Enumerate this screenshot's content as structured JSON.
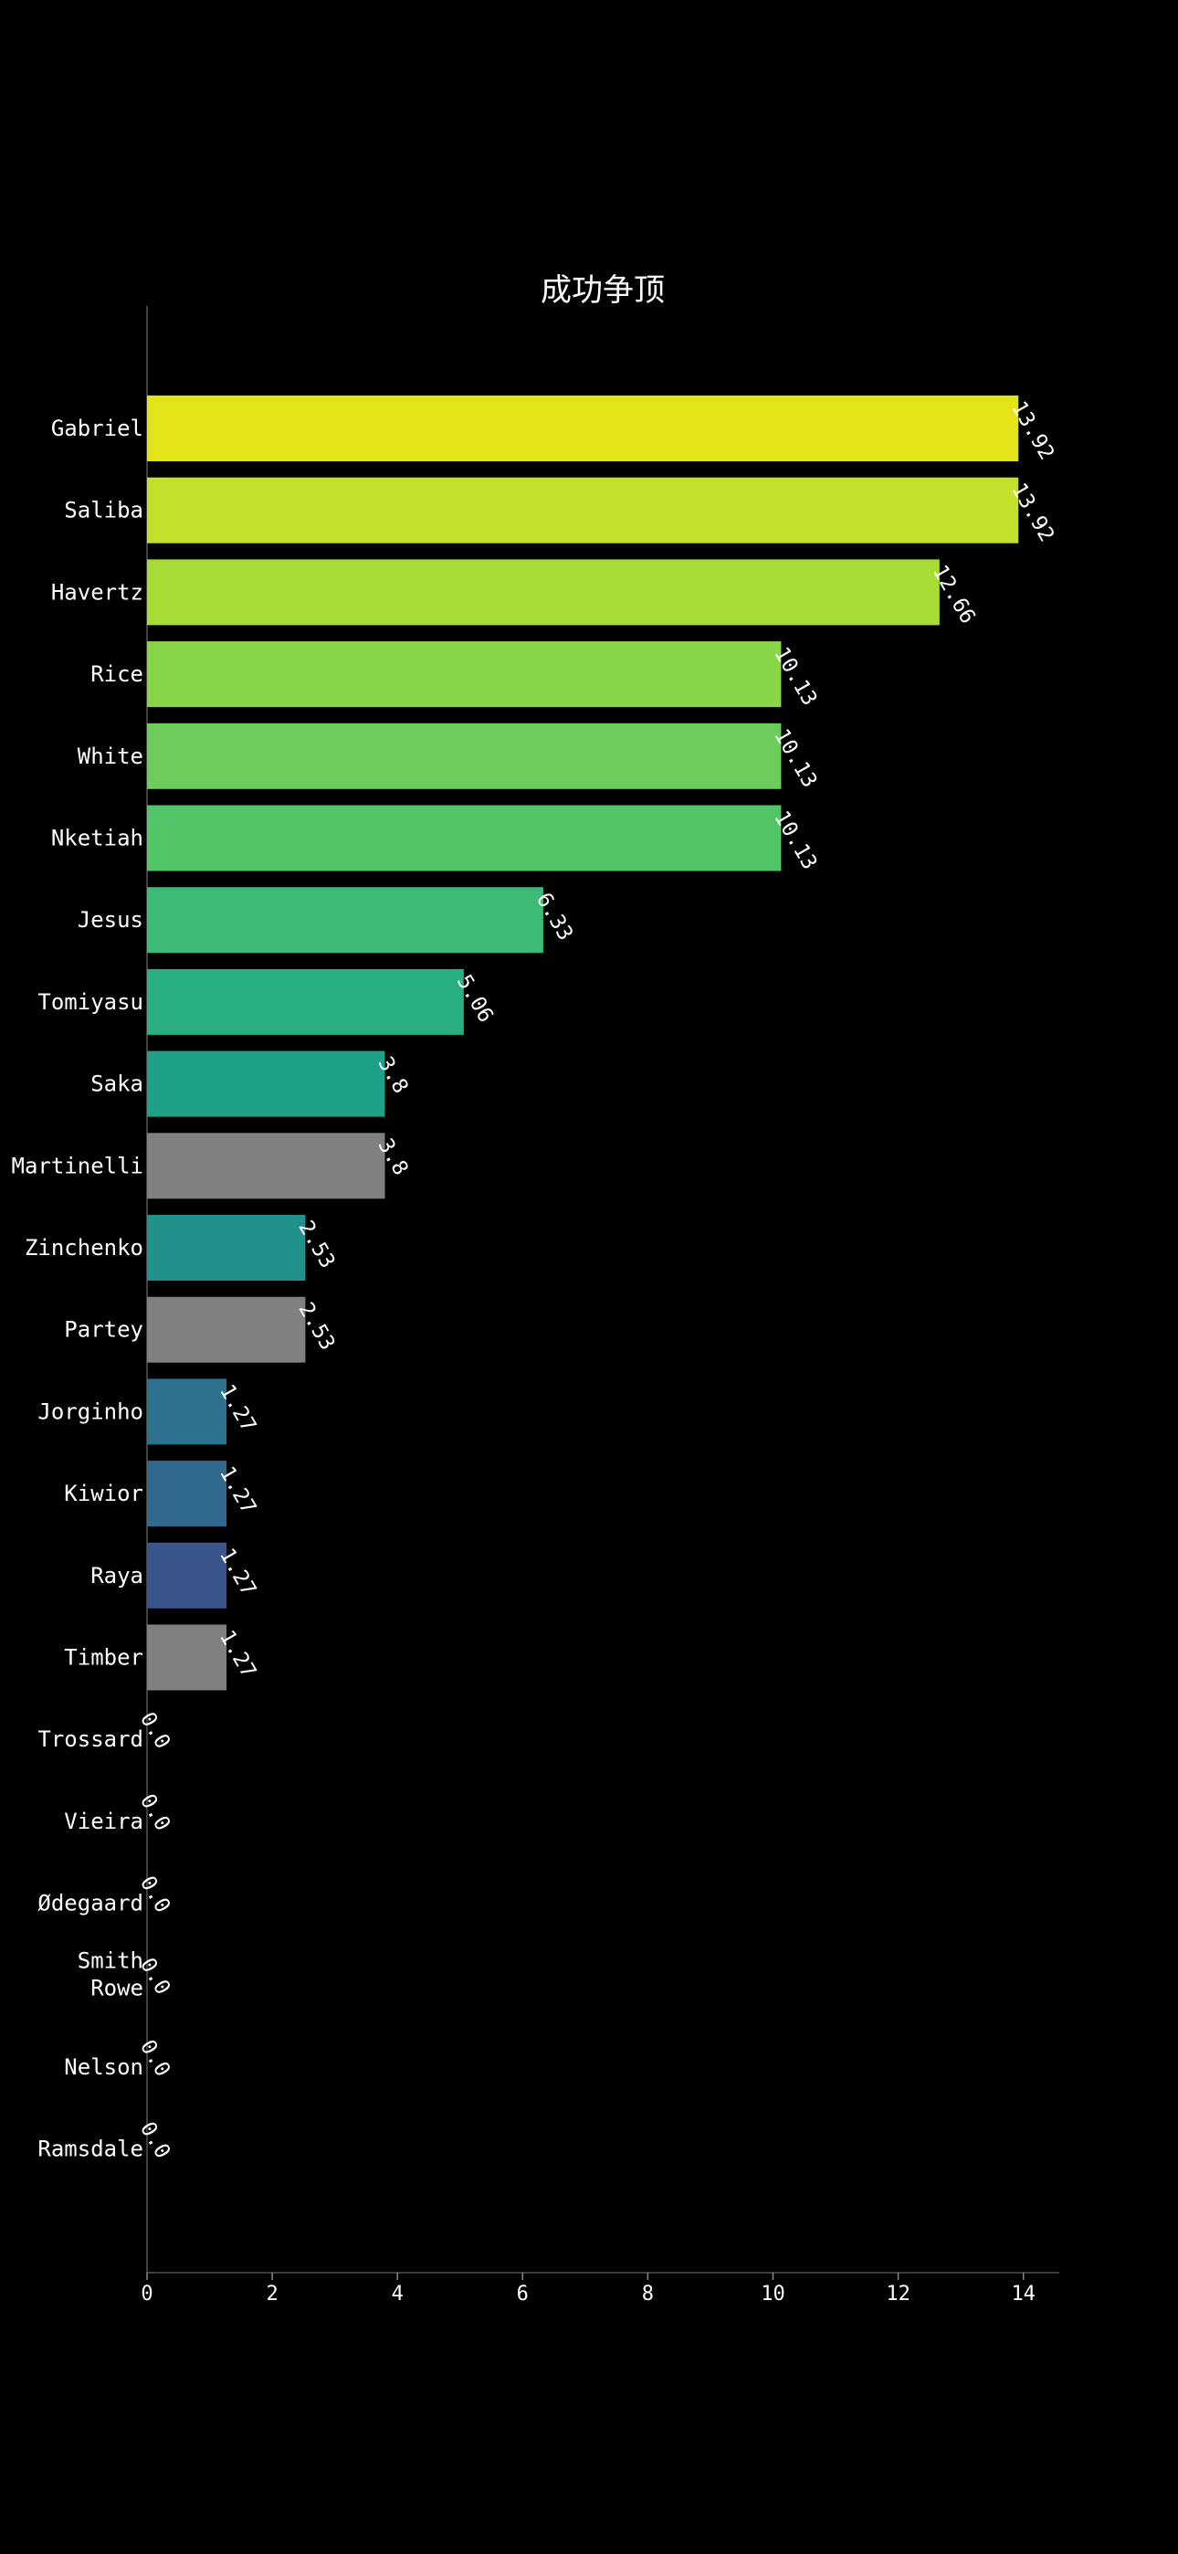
{
  "chart_data": {
    "type": "bar",
    "orientation": "horizontal",
    "title": "成功争顶",
    "xlabel": "",
    "ylabel": "",
    "xlim": [
      0,
      14.6
    ],
    "x_ticks": [
      0,
      2,
      4,
      6,
      8,
      10,
      12,
      14
    ],
    "categories": [
      "Gabriel",
      "Saliba",
      "Havertz",
      "Rice",
      "White",
      "Nketiah",
      "Jesus",
      "Tomiyasu",
      "Saka",
      "Martinelli",
      "Zinchenko",
      "Partey",
      "Jorginho",
      "Kiwior",
      "Raya",
      "Timber",
      "Trossard",
      "Vieira",
      "Ødegaard",
      "Smith Rowe",
      "Nelson",
      "Ramsdale"
    ],
    "values": [
      13.92,
      13.92,
      12.66,
      10.13,
      10.13,
      10.13,
      6.33,
      5.06,
      3.8,
      3.8,
      2.53,
      2.53,
      1.27,
      1.27,
      1.27,
      1.27,
      0.0,
      0.0,
      0.0,
      0.0,
      0.0,
      0.0
    ],
    "value_labels": [
      "13.92",
      "13.92",
      "12.66",
      "10.13",
      "10.13",
      "10.13",
      "6.33",
      "5.06",
      "3.8",
      "3.8",
      "2.53",
      "2.53",
      "1.27",
      "1.27",
      "1.27",
      "1.27",
      "0.0",
      "0.0",
      "0.0",
      "0.0",
      "0.0",
      "0.0"
    ],
    "colors": [
      "#e2e418",
      "#c5e02a",
      "#a7db35",
      "#89d548",
      "#6ccd5a",
      "#52c569",
      "#3bbb75",
      "#28ae80",
      "#1fa187",
      "#808080",
      "#21918c",
      "#808080",
      "#2c728e",
      "#31688e",
      "#3a558c",
      "#808080",
      "#808080",
      "#808080",
      "#808080",
      "#808080",
      "#808080",
      "#808080"
    ],
    "grid": false,
    "legend": "none",
    "background": "#000000"
  }
}
